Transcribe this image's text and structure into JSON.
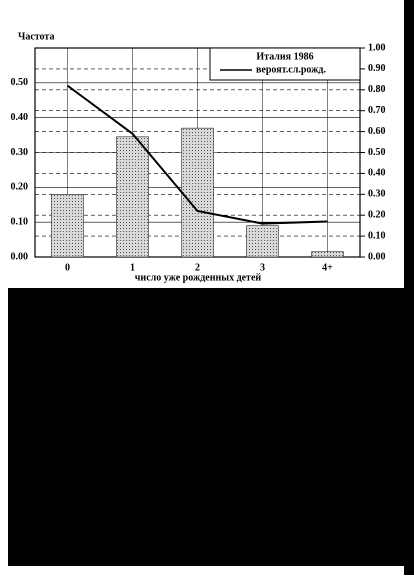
{
  "chart_data": {
    "type": "bar_line",
    "title": "Частота",
    "xlabel": "число уже рожденных детей",
    "legend_title": "Италия 1986",
    "categories": [
      "0",
      "1",
      "2",
      "3",
      "4+"
    ],
    "series": [
      {
        "type": "bar",
        "color": "#9a9a9a",
        "values": [
          0.18,
          0.345,
          0.37,
          0.09,
          0.015
        ]
      },
      {
        "type": "line",
        "name": "вероят.сл.рожд.",
        "color": "#000000",
        "axis": "y2",
        "values": [
          0.82,
          0.59,
          0.22,
          0.16,
          0.17
        ]
      }
    ],
    "ylim": [
      0,
      0.6
    ],
    "yticks": [
      {
        "value": 0,
        "label": "0.00"
      },
      {
        "value": 0.1,
        "label": "0.10"
      },
      {
        "value": 0.2,
        "label": "0.20"
      },
      {
        "value": 0.3,
        "label": "0.30"
      },
      {
        "value": 0.4,
        "label": "0.40"
      },
      {
        "value": 0.5,
        "label": "0.50"
      }
    ],
    "y2lim": [
      0,
      1
    ],
    "y2ticks": [
      {
        "value": 0,
        "label": "0.00"
      },
      {
        "value": 0.1,
        "label": "0.10"
      },
      {
        "value": 0.2,
        "label": "0.20"
      },
      {
        "value": 0.3,
        "label": "0.30"
      },
      {
        "value": 0.4,
        "label": "0.40"
      },
      {
        "value": 0.5,
        "label": "0.50"
      },
      {
        "value": 0.6,
        "label": "0.60"
      },
      {
        "value": 0.7,
        "label": "0.70"
      },
      {
        "value": 0.8,
        "label": "0.80"
      },
      {
        "value": 0.9,
        "label": "0.90"
      },
      {
        "value": 1,
        "label": "1.00"
      }
    ],
    "grid": true
  }
}
